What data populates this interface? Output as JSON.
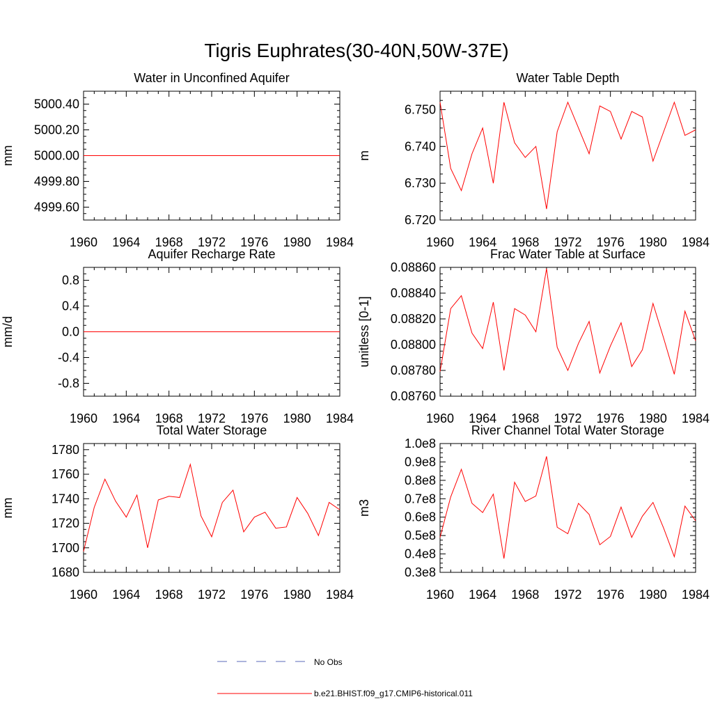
{
  "page_title": "Tigris Euphrates(30-40N,50W-37E)",
  "colors": {
    "series": "#ff0000",
    "obs": "#5a6ab8",
    "axis": "#000000"
  },
  "legend": {
    "items": [
      {
        "label": "No Obs",
        "style": "dashed",
        "color": "#5a6ab8"
      },
      {
        "label": "b.e21.BHIST.f09_g17.CMIP6-historical.011",
        "style": "solid",
        "color": "#ff0000"
      }
    ]
  },
  "chart_data": [
    {
      "type": "line",
      "title": "Water in Unconfined Aquifer",
      "ylabel": "mm",
      "xlim": [
        1960,
        1984
      ],
      "xticks": [
        1960,
        1964,
        1968,
        1972,
        1976,
        1980,
        1984
      ],
      "ylim": [
        4999.5,
        5000.5
      ],
      "yticks": [
        4999.6,
        4999.8,
        5000.0,
        5000.2,
        5000.4
      ],
      "ytick_labels": [
        "4999.60",
        "4999.80",
        "5000.00",
        "5000.20",
        "5000.40"
      ],
      "series": [
        {
          "x": [
            1960,
            1984
          ],
          "values": [
            5000.0,
            5000.0
          ]
        }
      ]
    },
    {
      "type": "line",
      "title": "Water Table Depth",
      "ylabel": "m",
      "xlim": [
        1960,
        1984
      ],
      "xticks": [
        1960,
        1964,
        1968,
        1972,
        1976,
        1980,
        1984
      ],
      "ylim": [
        6.72,
        6.755
      ],
      "yticks": [
        6.72,
        6.73,
        6.74,
        6.75
      ],
      "ytick_labels": [
        "6.720",
        "6.730",
        "6.740",
        "6.750"
      ],
      "series": [
        {
          "x": [
            1960,
            1961,
            1962,
            1963,
            1964,
            1965,
            1966,
            1967,
            1968,
            1969,
            1970,
            1971,
            1972,
            1973,
            1974,
            1975,
            1976,
            1977,
            1978,
            1979,
            1980,
            1981,
            1982,
            1983,
            1984
          ],
          "values": [
            6.752,
            6.734,
            6.728,
            6.738,
            6.745,
            6.73,
            6.752,
            6.741,
            6.737,
            6.74,
            6.723,
            6.744,
            6.752,
            6.745,
            6.738,
            6.751,
            6.7495,
            6.742,
            6.7495,
            6.748,
            6.736,
            6.744,
            6.752,
            6.743,
            6.7445
          ]
        }
      ]
    },
    {
      "type": "line",
      "title": "Aquifer Recharge Rate",
      "ylabel": "mm/d",
      "xlim": [
        1960,
        1984
      ],
      "xticks": [
        1960,
        1964,
        1968,
        1972,
        1976,
        1980,
        1984
      ],
      "ylim": [
        -1.0,
        1.0
      ],
      "yticks": [
        -0.8,
        -0.4,
        0.0,
        0.4,
        0.8
      ],
      "ytick_labels": [
        "-0.8",
        "-0.4",
        "0.0",
        "0.4",
        "0.8"
      ],
      "series": [
        {
          "x": [
            1960,
            1984
          ],
          "values": [
            0.0,
            0.0
          ]
        }
      ]
    },
    {
      "type": "line",
      "title": "Frac Water Table at Surface",
      "ylabel": "unitless [0-1]",
      "xlim": [
        1960,
        1984
      ],
      "xticks": [
        1960,
        1964,
        1968,
        1972,
        1976,
        1980,
        1984
      ],
      "ylim": [
        0.0876,
        0.0886
      ],
      "yticks": [
        0.0876,
        0.0878,
        0.088,
        0.0882,
        0.0884,
        0.0886
      ],
      "ytick_labels": [
        "0.08760",
        "0.08780",
        "0.08800",
        "0.08820",
        "0.08840",
        "0.08860"
      ],
      "series": [
        {
          "x": [
            1960,
            1961,
            1962,
            1963,
            1964,
            1965,
            1966,
            1967,
            1968,
            1969,
            1970,
            1971,
            1972,
            1973,
            1974,
            1975,
            1976,
            1977,
            1978,
            1979,
            1980,
            1981,
            1982,
            1983,
            1984
          ],
          "values": [
            0.08779,
            0.08828,
            0.08838,
            0.08809,
            0.08797,
            0.08833,
            0.0878,
            0.08828,
            0.08823,
            0.0881,
            0.08859,
            0.08798,
            0.0878,
            0.08801,
            0.08818,
            0.08778,
            0.08799,
            0.08817,
            0.08783,
            0.08796,
            0.08832,
            0.08805,
            0.08777,
            0.08826,
            0.08803
          ]
        }
      ]
    },
    {
      "type": "line",
      "title": "Total Water Storage",
      "ylabel": "mm",
      "xlim": [
        1960,
        1984
      ],
      "xticks": [
        1960,
        1964,
        1968,
        1972,
        1976,
        1980,
        1984
      ],
      "ylim": [
        1680,
        1785
      ],
      "yticks": [
        1680,
        1700,
        1720,
        1740,
        1760,
        1780
      ],
      "ytick_labels": [
        "1680",
        "1700",
        "1720",
        "1740",
        "1760",
        "1780"
      ],
      "series": [
        {
          "x": [
            1960,
            1961,
            1962,
            1963,
            1964,
            1965,
            1966,
            1967,
            1968,
            1969,
            1970,
            1971,
            1972,
            1973,
            1974,
            1975,
            1976,
            1977,
            1978,
            1979,
            1980,
            1981,
            1982,
            1983,
            1984
          ],
          "values": [
            1697,
            1733,
            1756,
            1738,
            1725,
            1743,
            1700,
            1739,
            1742,
            1741,
            1768,
            1726,
            1709,
            1737,
            1747,
            1713,
            1725,
            1729,
            1716,
            1717,
            1741,
            1728,
            1710,
            1737,
            1731
          ]
        }
      ]
    },
    {
      "type": "line",
      "title": "River Channel Total Water Storage",
      "ylabel": "m3",
      "xlim": [
        1960,
        1984
      ],
      "xticks": [
        1960,
        1964,
        1968,
        1972,
        1976,
        1980,
        1984
      ],
      "ylim": [
        30000000,
        100000000
      ],
      "yticks": [
        30000000,
        40000000,
        50000000,
        60000000,
        70000000,
        80000000,
        90000000,
        100000000
      ],
      "ytick_labels": [
        "0.3e8",
        "0.4e8",
        "0.5e8",
        "0.6e8",
        "0.7e8",
        "0.8e8",
        "0.9e8",
        "1.0e8"
      ],
      "series": [
        {
          "x": [
            1960,
            1961,
            1962,
            1963,
            1964,
            1965,
            1966,
            1967,
            1968,
            1969,
            1970,
            1971,
            1972,
            1973,
            1974,
            1975,
            1976,
            1977,
            1978,
            1979,
            1980,
            1981,
            1982,
            1983,
            1984
          ],
          "values": [
            49000000,
            71000000,
            86000000,
            67500000,
            62500000,
            72500000,
            37500000,
            79000000,
            68500000,
            71500000,
            93000000,
            54500000,
            51000000,
            67500000,
            61500000,
            45000000,
            49500000,
            65500000,
            49000000,
            60500000,
            68000000,
            54000000,
            38500000,
            66000000,
            58000000
          ]
        }
      ]
    }
  ]
}
